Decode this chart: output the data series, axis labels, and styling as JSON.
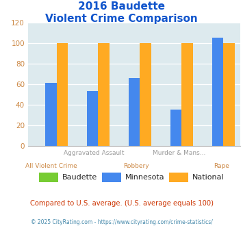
{
  "title_line1": "2016 Baudette",
  "title_line2": "Violent Crime Comparison",
  "x_labels_top": [
    "",
    "Aggravated Assault",
    "",
    "Murder & Mans...",
    ""
  ],
  "x_labels_bottom": [
    "All Violent Crime",
    "",
    "Robbery",
    "",
    "Rape"
  ],
  "series": {
    "Baudette": [
      0,
      0,
      0,
      0,
      0
    ],
    "Minnesota": [
      61,
      53,
      66,
      35,
      105
    ],
    "National": [
      100,
      100,
      100,
      100,
      100
    ]
  },
  "colors": {
    "Baudette": "#77cc33",
    "Minnesota": "#4488ee",
    "National": "#ffaa22"
  },
  "ylim": [
    0,
    120
  ],
  "yticks": [
    0,
    20,
    40,
    60,
    80,
    100,
    120
  ],
  "ytick_color": "#cc8844",
  "plot_bg_color": "#ddeaee",
  "title_color": "#1155cc",
  "xlabel_top_color": "#999999",
  "xlabel_bottom_color": "#cc8844",
  "legend_note": "Compared to U.S. average. (U.S. average equals 100)",
  "legend_note_color": "#cc3300",
  "copyright_text": "© 2025 CityRating.com - https://www.cityrating.com/crime-statistics/",
  "copyright_color": "#4488aa",
  "bar_width": 0.27,
  "n_cats": 5
}
